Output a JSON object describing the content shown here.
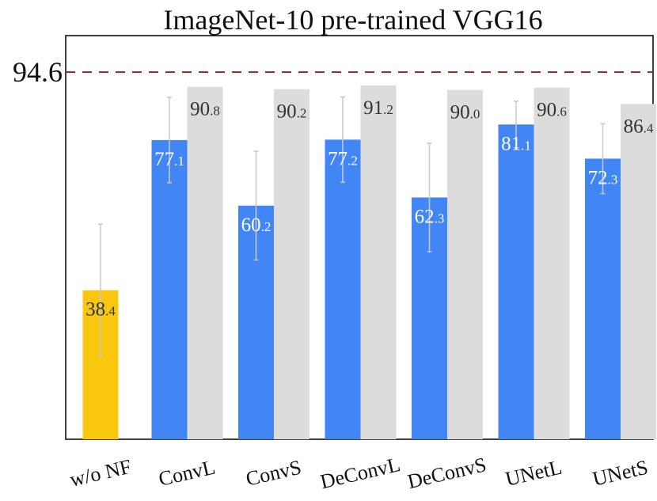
{
  "chart_data": {
    "type": "bar",
    "title": "ImageNet-10 pre-trained VGG16",
    "xlabel": "",
    "ylabel": "",
    "ylim": [
      0,
      104
    ],
    "grid": false,
    "reference_line": {
      "value": 94.6,
      "label": "94.6",
      "style": "dashed",
      "color": "#7a2e3a"
    },
    "categories": [
      "w/o NF",
      "ConvL",
      "ConvS",
      "DeConvL",
      "DeConvS",
      "UNetL",
      "UNetS"
    ],
    "series": [
      {
        "color": "#4285f4",
        "baseline_color": "#f9c80e",
        "values": [
          38.4,
          77.1,
          60.2,
          77.2,
          62.3,
          81.1,
          72.3
        ],
        "error": [
          17.0,
          11.0,
          14.0,
          11.0,
          14.0,
          6.0,
          9.0
        ],
        "labels": [
          {
            "int": "38",
            "dec": ".4"
          },
          {
            "int": "77",
            "dec": ".1"
          },
          {
            "int": "60",
            "dec": ".2"
          },
          {
            "int": "77",
            "dec": ".2"
          },
          {
            "int": "62",
            "dec": ".3"
          },
          {
            "int": "81",
            "dec": ".1"
          },
          {
            "int": "72",
            "dec": ".3"
          }
        ]
      },
      {
        "color": "#dcdcdc",
        "values": [
          null,
          90.8,
          90.2,
          91.2,
          90.0,
          90.6,
          86.4
        ],
        "labels": [
          null,
          {
            "int": "90",
            "dec": ".8"
          },
          {
            "int": "90",
            "dec": ".2"
          },
          {
            "int": "91",
            "dec": ".2"
          },
          {
            "int": "90",
            "dec": ".0"
          },
          {
            "int": "90",
            "dec": ".6"
          },
          {
            "int": "86",
            "dec": ".4"
          }
        ]
      }
    ]
  }
}
